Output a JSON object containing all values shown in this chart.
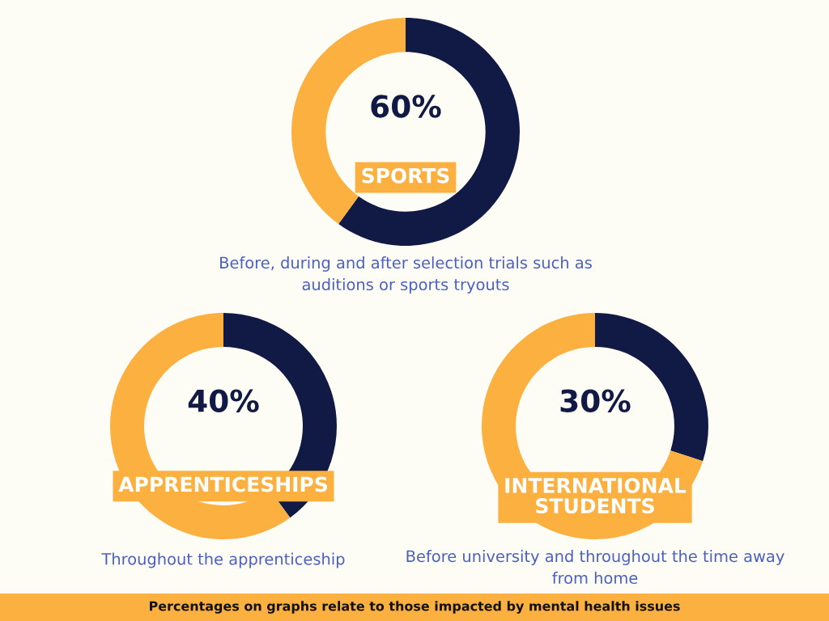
{
  "chart_data": [
    {
      "type": "donut",
      "title": "SPORTS",
      "categories": [
        null,
        null
      ],
      "values": [
        60,
        40
      ],
      "colors": [
        "#111a45",
        "#fbb040"
      ],
      "value_labels": [
        "60%",
        null
      ],
      "annotations": [
        "Before, during and after selection trials such as\nauditions or sports tryouts"
      ]
    },
    {
      "type": "donut",
      "title": "APPRENTICESHIPS",
      "categories": [
        null,
        null
      ],
      "values": [
        40,
        60
      ],
      "colors": [
        "#111a45",
        "#fbb040"
      ],
      "value_labels": [
        "40%",
        null
      ],
      "annotations": [
        "Throughout the apprenticeship"
      ]
    },
    {
      "type": "donut",
      "title": "INTERNATIONAL\nSTUDENTS",
      "categories": [
        null,
        null
      ],
      "values": [
        30,
        70
      ],
      "colors": [
        "#111a45",
        "#fbb040"
      ],
      "value_labels": [
        "30%",
        null
      ],
      "annotations": [
        "Before university and throughout the time away\nfrom home",
        "Percentages on graphs relate to those impacted by mental health issues"
      ]
    }
  ]
}
